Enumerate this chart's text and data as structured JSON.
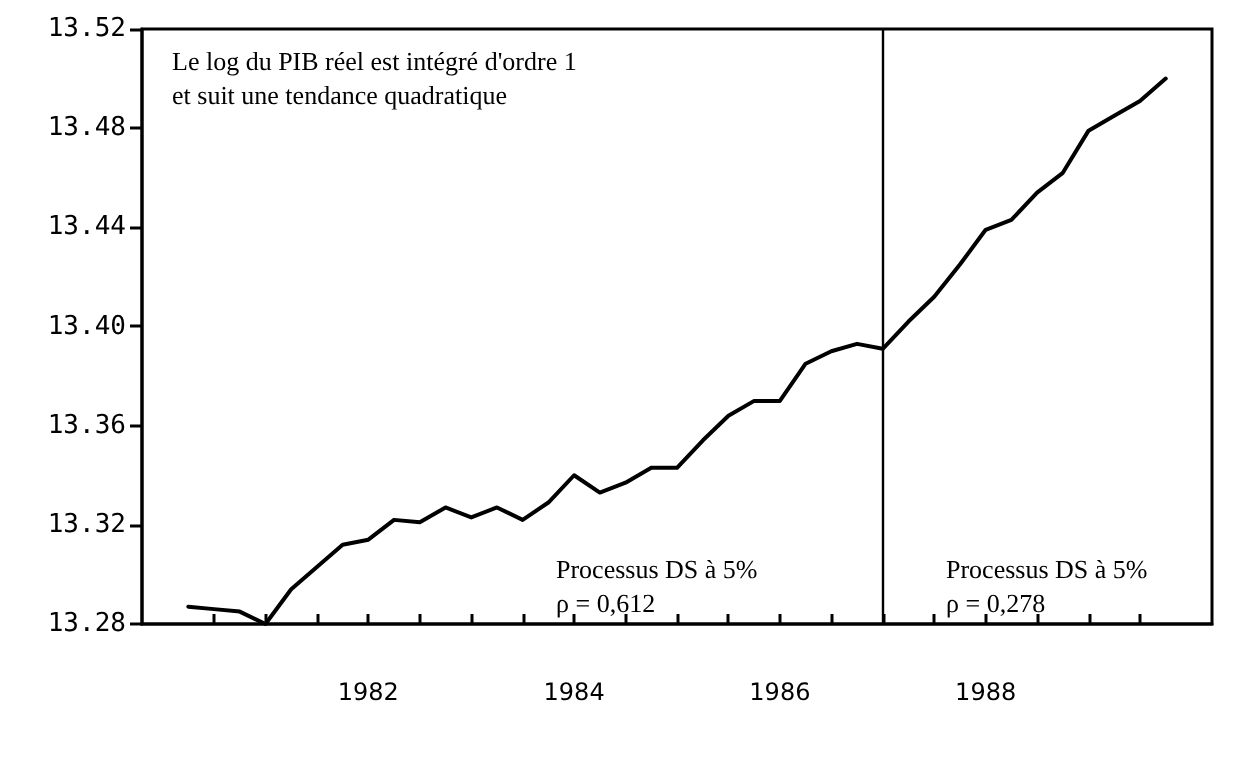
{
  "chart_data": {
    "type": "line",
    "annotations": [
      "Le log du PIB réel est intégré d'ordre 1\net suit une tendance quadratique",
      "Processus DS à 5%\nρ = 0,612",
      "Processus DS à 5%\nρ = 0,278"
    ],
    "x": [
      1980.25,
      1980.5,
      1980.75,
      1981,
      1981.25,
      1981.5,
      1981.75,
      1982,
      1982.25,
      1982.5,
      1982.75,
      1983,
      1983.25,
      1983.5,
      1983.75,
      1984,
      1984.25,
      1984.5,
      1984.75,
      1985,
      1985.25,
      1985.5,
      1985.75,
      1986,
      1986.25,
      1986.5,
      1986.75,
      1987,
      1987.25,
      1987.5,
      1987.75,
      1988,
      1988.25,
      1988.5,
      1988.75,
      1989,
      1989.25,
      1989.5,
      1989.75
    ],
    "series": [
      {
        "color": "#000000",
        "values": [
          13.287,
          13.286,
          13.285,
          13.28,
          13.294,
          13.303,
          13.312,
          13.314,
          13.322,
          13.321,
          13.327,
          13.323,
          13.327,
          13.322,
          13.329,
          13.34,
          13.333,
          13.337,
          13.343,
          13.343,
          13.354,
          13.364,
          13.37,
          13.37,
          13.385,
          13.39,
          13.393,
          13.391,
          13.402,
          13.412,
          13.425,
          13.439,
          13.443,
          13.454,
          13.462,
          13.479,
          13.485,
          13.491,
          13.5
        ]
      }
    ],
    "xlim": [
      1979.8,
      1990.2
    ],
    "xticks": [
      {
        "value": 1980.5,
        "label": null
      },
      {
        "value": 1981,
        "label": null
      },
      {
        "value": 1981.5,
        "label": null
      },
      1982,
      {
        "value": 1982.5,
        "label": null
      },
      {
        "value": 1983,
        "label": null
      },
      {
        "value": 1983.5,
        "label": null
      },
      1984,
      {
        "value": 1984.5,
        "label": null
      },
      {
        "value": 1985,
        "label": null
      },
      {
        "value": 1985.5,
        "label": null
      },
      1986,
      {
        "value": 1986.5,
        "label": null
      },
      {
        "value": 1987,
        "label": null
      },
      {
        "value": 1987.5,
        "label": null
      },
      1988,
      {
        "value": 1988.5,
        "label": null
      },
      {
        "value": 1989,
        "label": null
      },
      {
        "value": 1989.5,
        "label": null
      }
    ],
    "ylim": [
      13.28,
      13.52
    ],
    "yticks": [
      13.28,
      13.32,
      13.36,
      {
        "value": 13.4,
        "label": "13.40"
      },
      13.44,
      13.48,
      13.52
    ],
    "ref_lines": [
      {
        "axis": "x",
        "value": 1987,
        "color": "#000000"
      }
    ],
    "grid": false,
    "marker": "none",
    "line_style": "solid"
  }
}
